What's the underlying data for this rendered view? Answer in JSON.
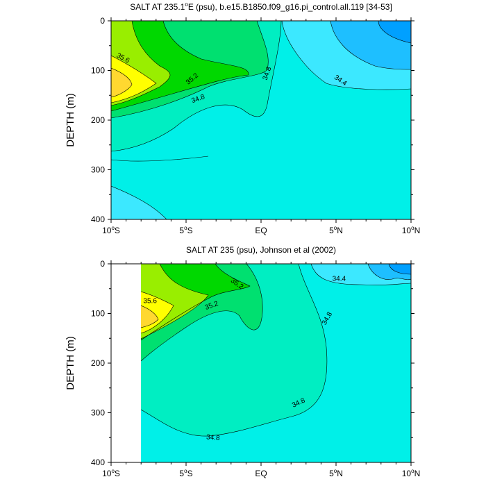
{
  "chart_data": [
    {
      "type": "contour",
      "title": "SALT AT 235.1°E (psu), b.e15.B1850.f09_g16.pi_control.all.119 [34-53]",
      "title_parts": {
        "pre": "SALT AT 235.1",
        "sup": "o",
        "post": "E (psu), b.e15.B1850.f09_g16.pi_control.all.119 [34-53]"
      },
      "ylabel": "DEPTH (m)",
      "xlim": [
        -10,
        10
      ],
      "ylim": [
        400,
        0
      ],
      "y_ticks": [
        0,
        100,
        200,
        300,
        400
      ],
      "x_ticks": [
        {
          "value": -10,
          "num": "10",
          "sup": "o",
          "hemi": "S"
        },
        {
          "value": -5,
          "num": "5",
          "sup": "o",
          "hemi": "S"
        },
        {
          "value": 0,
          "num": "EQ",
          "sup": "",
          "hemi": ""
        },
        {
          "value": 5,
          "num": "5",
          "sup": "o",
          "hemi": "N"
        },
        {
          "value": 10,
          "num": "10",
          "sup": "o",
          "hemi": "N"
        }
      ],
      "data_extent_lat": [
        -10,
        10
      ],
      "fill_levels": [
        {
          "min": 34.0,
          "color": "#00a0ff"
        },
        {
          "min": 34.2,
          "color": "#1ebfff"
        },
        {
          "min": 34.4,
          "color": "#3ce8ff"
        },
        {
          "min": 34.6,
          "color": "#00f0e8"
        },
        {
          "min": 34.8,
          "color": "#00eec2"
        },
        {
          "min": 35.0,
          "color": "#00e070"
        },
        {
          "min": 35.2,
          "color": "#00d800"
        },
        {
          "min": 35.4,
          "color": "#99ee00"
        },
        {
          "min": 35.6,
          "color": "#ffff00"
        },
        {
          "min": 35.8,
          "color": "#ffd830"
        }
      ],
      "contour_labels": [
        {
          "text": "35.6",
          "lat": -9.2,
          "depth": 75,
          "angle": 28
        },
        {
          "text": "35.2",
          "lat": -4.6,
          "depth": 117,
          "angle": -40
        },
        {
          "text": "34.8",
          "lat": -4.2,
          "depth": 157,
          "angle": -20
        },
        {
          "text": "34.8",
          "lat": 0.4,
          "depth": 106,
          "angle": -70
        },
        {
          "text": "34.4",
          "lat": 5.3,
          "depth": 120,
          "angle": 35
        }
      ]
    },
    {
      "type": "contour",
      "title": "SALT AT 235 (psu), Johnson et al (2002)",
      "title_parts": {
        "pre": "SALT AT 235 (psu), Johnson et al (2002)",
        "sup": "",
        "post": ""
      },
      "ylabel": "DEPTH (m)",
      "xlim": [
        -10,
        10
      ],
      "ylim": [
        400,
        0
      ],
      "y_ticks": [
        0,
        100,
        200,
        300,
        400
      ],
      "x_ticks": [
        {
          "value": -10,
          "num": "10",
          "sup": "o",
          "hemi": "S"
        },
        {
          "value": -5,
          "num": "5",
          "sup": "o",
          "hemi": "S"
        },
        {
          "value": 0,
          "num": "EQ",
          "sup": "",
          "hemi": ""
        },
        {
          "value": 5,
          "num": "5",
          "sup": "o",
          "hemi": "N"
        },
        {
          "value": 10,
          "num": "10",
          "sup": "o",
          "hemi": "N"
        }
      ],
      "data_extent_lat": [
        -8,
        10
      ],
      "fill_levels": [
        {
          "min": 34.0,
          "color": "#00a0ff"
        },
        {
          "min": 34.2,
          "color": "#1ebfff"
        },
        {
          "min": 34.4,
          "color": "#3ce8ff"
        },
        {
          "min": 34.6,
          "color": "#00f0e8"
        },
        {
          "min": 34.8,
          "color": "#00eec2"
        },
        {
          "min": 35.0,
          "color": "#00e070"
        },
        {
          "min": 35.2,
          "color": "#00d800"
        },
        {
          "min": 35.4,
          "color": "#99ee00"
        },
        {
          "min": 35.6,
          "color": "#ffff00"
        },
        {
          "min": 35.8,
          "color": "#ffd830"
        }
      ],
      "contour_labels": [
        {
          "text": "35.2",
          "lat": -1.6,
          "depth": 40,
          "angle": 35
        },
        {
          "text": "35.6",
          "lat": -7.4,
          "depth": 75,
          "angle": 0
        },
        {
          "text": "35.2",
          "lat": -3.3,
          "depth": 84,
          "angle": -20
        },
        {
          "text": "34.4",
          "lat": 5.2,
          "depth": 30,
          "angle": 0
        },
        {
          "text": "34.8",
          "lat": 4.4,
          "depth": 110,
          "angle": -60
        },
        {
          "text": "34.8",
          "lat": 2.5,
          "depth": 280,
          "angle": -25
        },
        {
          "text": "34.8",
          "lat": -3.2,
          "depth": 350,
          "angle": 5
        }
      ]
    }
  ]
}
